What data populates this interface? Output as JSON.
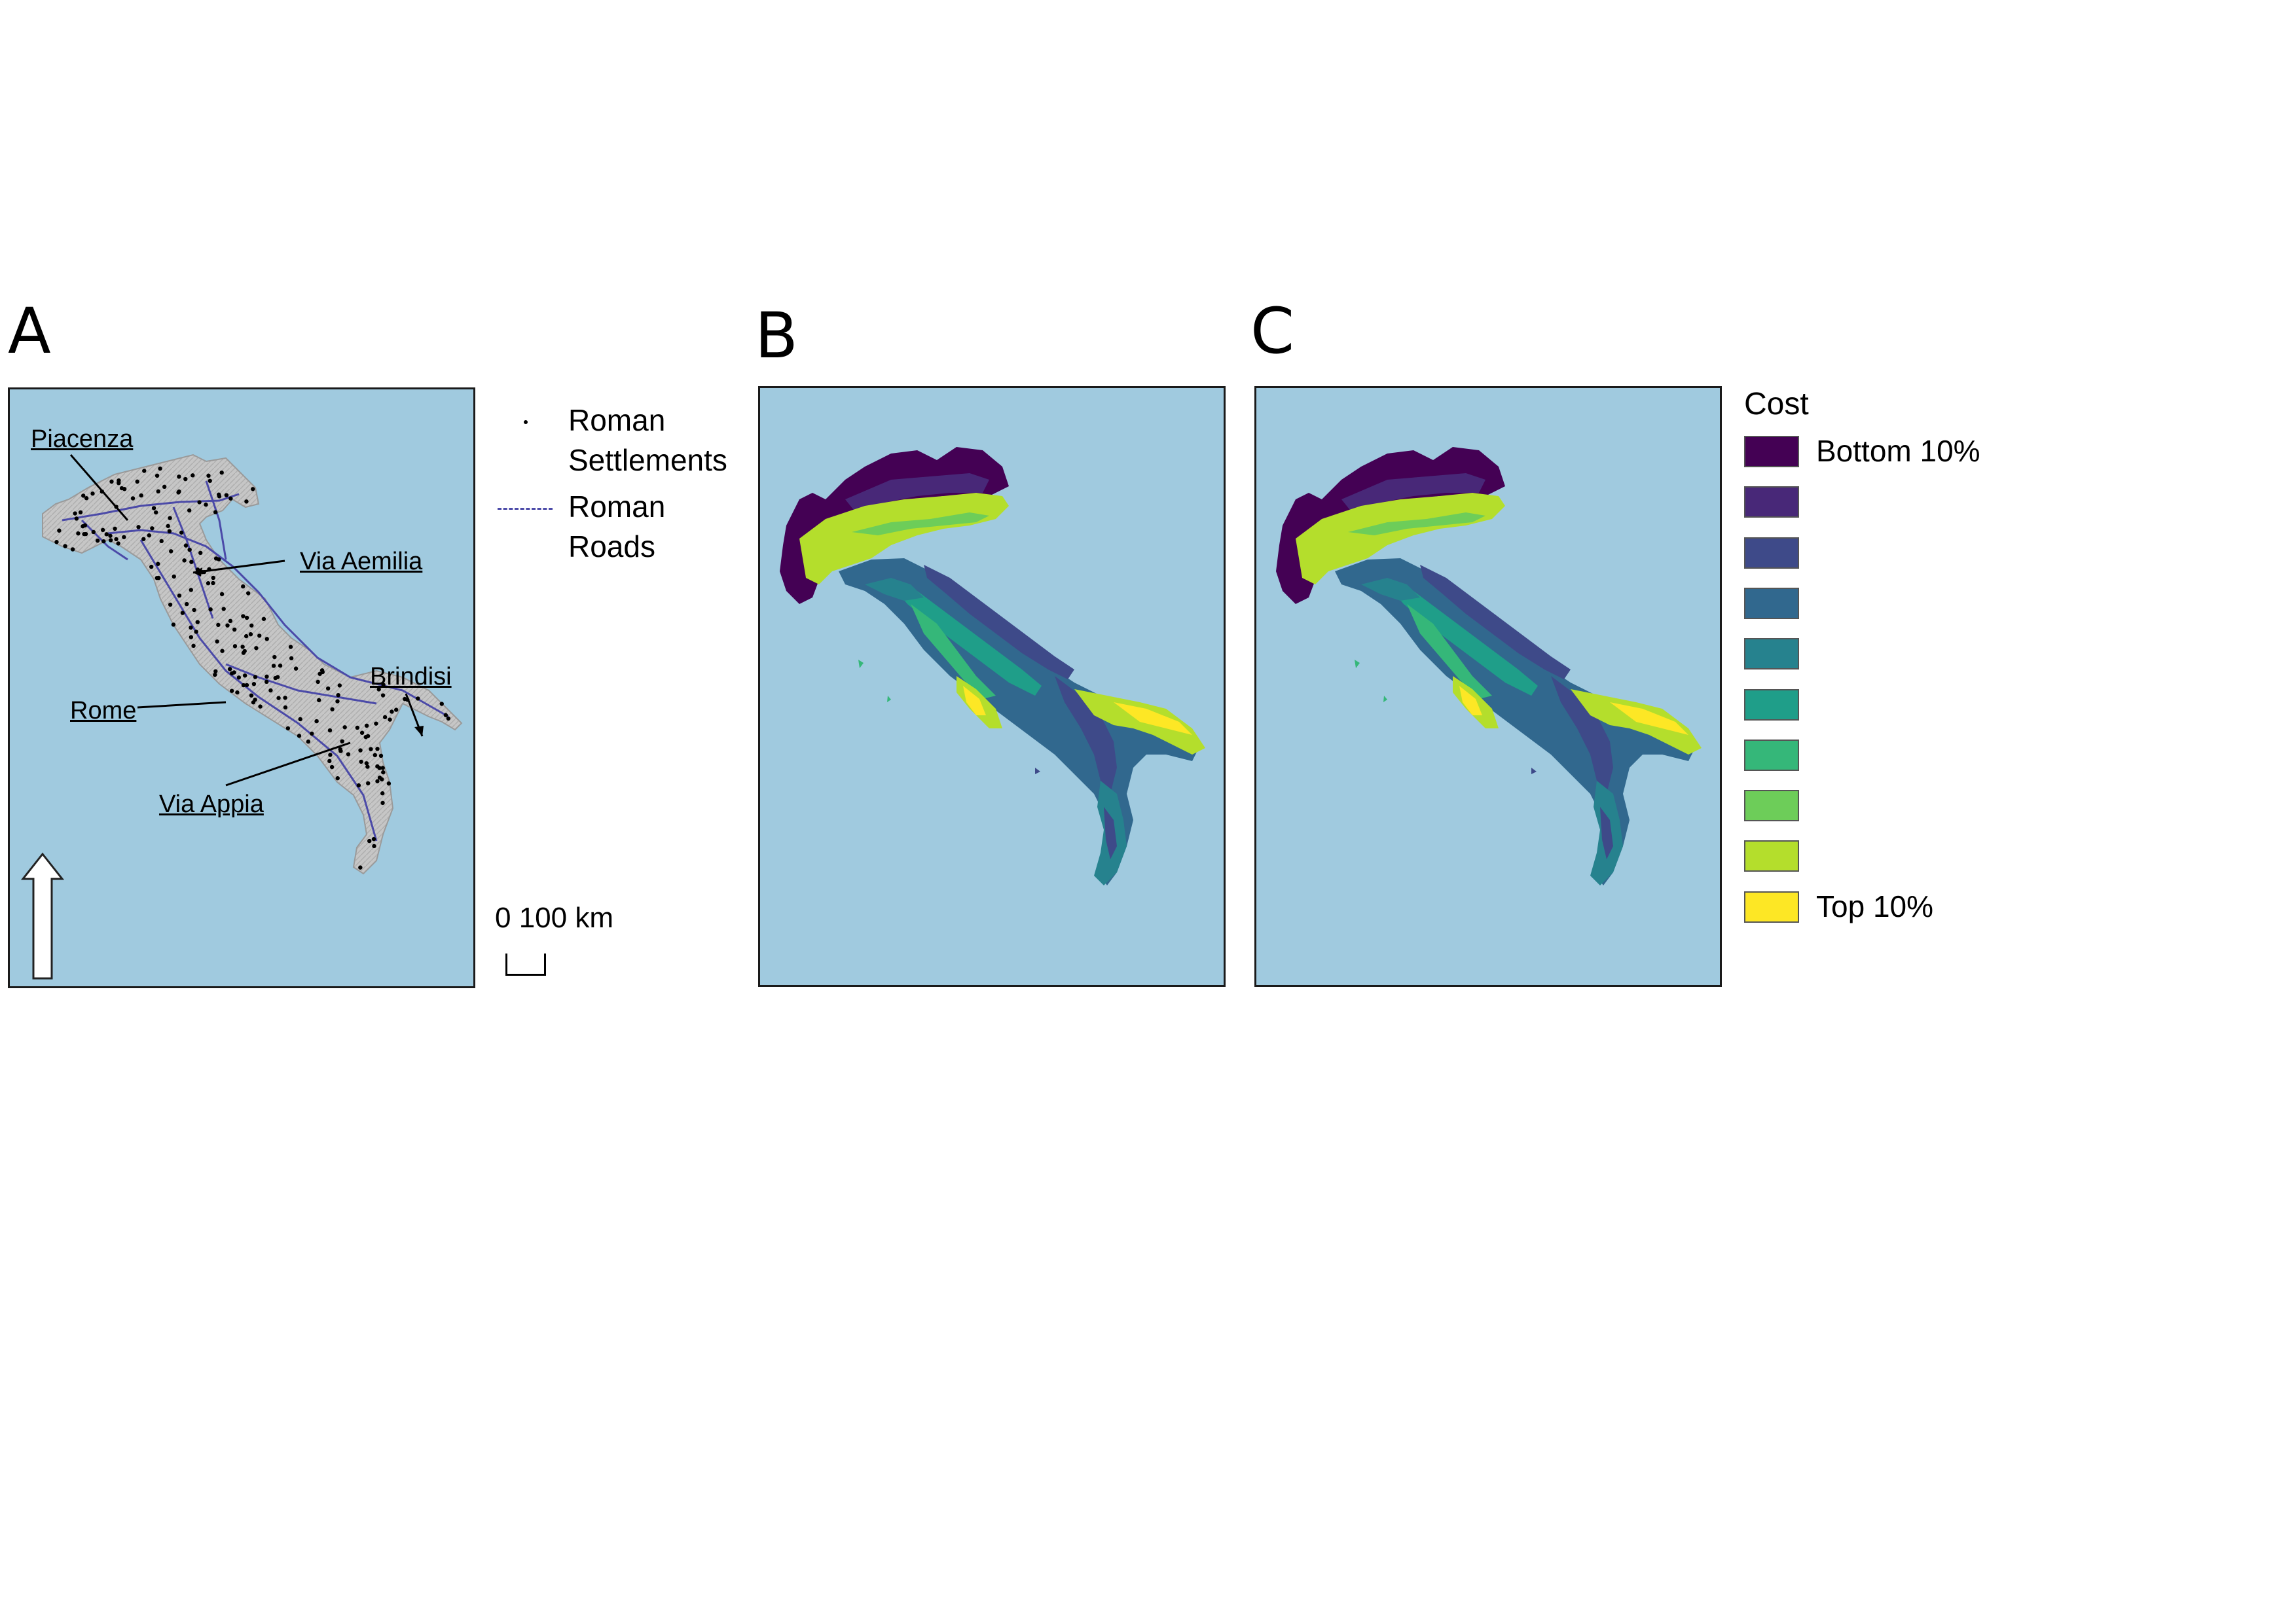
{
  "panels": {
    "a": {
      "letter": "A"
    },
    "b": {
      "letter": "B"
    },
    "c": {
      "letter": "C"
    }
  },
  "callouts": {
    "piacenza": "Piacenza",
    "via_aemilia": "Via Aemilia",
    "brindisi": "Brindisi",
    "rome": "Rome",
    "via_appia": "Via Appia"
  },
  "legend_a": {
    "settlements_line1": "Roman",
    "settlements_line2": "Settlements",
    "roads_line1": "Roman",
    "roads_line2": "Roads",
    "road_color": "#4b4aa8",
    "settlement_color": "#000000"
  },
  "scale_bar": {
    "label": "0 100 km"
  },
  "colors": {
    "sea": "#a0cadf",
    "land_relief": "#c4c4c4"
  },
  "cost_legend": {
    "title": "Cost",
    "classes": [
      {
        "color": "#440154",
        "label": "Bottom 10%"
      },
      {
        "color": "#482878",
        "label": ""
      },
      {
        "color": "#3e4a89",
        "label": ""
      },
      {
        "color": "#31688e",
        "label": ""
      },
      {
        "color": "#26828e",
        "label": ""
      },
      {
        "color": "#1f9e89",
        "label": ""
      },
      {
        "color": "#35b779",
        "label": ""
      },
      {
        "color": "#6dcd59",
        "label": ""
      },
      {
        "color": "#b4de2c",
        "label": ""
      },
      {
        "color": "#fde725",
        "label": "Top 10%"
      }
    ]
  }
}
